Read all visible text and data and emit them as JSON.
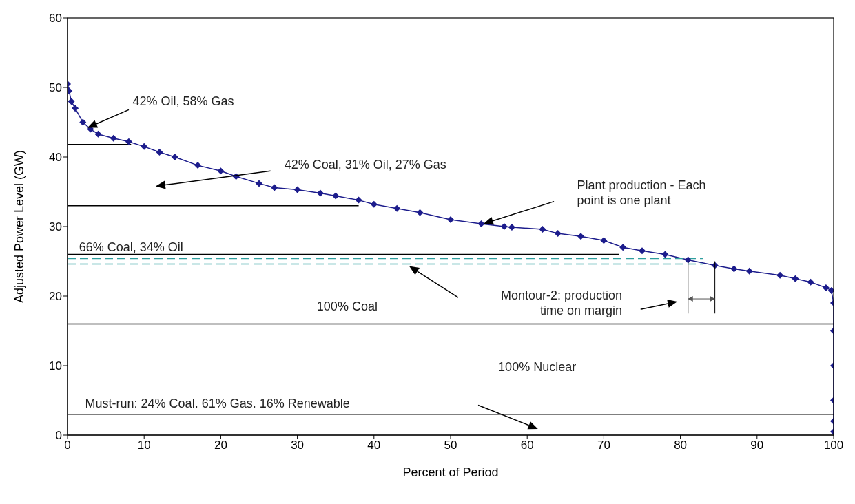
{
  "chart_data": {
    "type": "line",
    "xlabel": "Percent of Period",
    "ylabel": "Adjusted Power Level (GW)",
    "xlim": [
      0,
      100
    ],
    "xticks": [
      0,
      10,
      20,
      30,
      40,
      50,
      60,
      70,
      80,
      90,
      100
    ],
    "ylim": [
      0,
      60
    ],
    "yticks": [
      0,
      10,
      20,
      30,
      40,
      50,
      60
    ],
    "series": [
      {
        "marker": "diamond",
        "color": "#1c1c8c",
        "x": [
          0,
          0.2,
          0.5,
          1,
          2,
          3,
          4,
          6,
          8,
          10,
          12,
          14,
          17,
          20,
          22,
          25,
          27,
          30,
          33,
          35,
          38,
          40,
          43,
          46,
          50,
          54,
          57,
          58,
          62,
          64,
          67,
          70,
          72.5,
          75,
          78,
          81,
          84.5,
          87,
          89,
          93,
          95,
          97,
          99,
          99.7,
          100,
          100,
          100,
          100,
          100,
          100
        ],
        "values": [
          50.5,
          49.5,
          48,
          47,
          45,
          44,
          43.3,
          42.7,
          42.2,
          41.5,
          40.7,
          40,
          38.8,
          38,
          37.2,
          36.2,
          35.6,
          35.3,
          34.8,
          34.4,
          33.8,
          33.2,
          32.6,
          32,
          31,
          30.4,
          30,
          29.9,
          29.6,
          29,
          28.6,
          28,
          27,
          26.5,
          26,
          25.2,
          24.4,
          23.9,
          23.6,
          23,
          22.5,
          22,
          21.2,
          20.8,
          19,
          15,
          10,
          5,
          2,
          0.5
        ]
      },
      {
        "marker": "none",
        "color": "#000000",
        "x": [
          0,
          8.3
        ],
        "values": [
          41.8,
          41.8
        ]
      },
      {
        "marker": "none",
        "color": "#000000",
        "x": [
          0,
          38
        ],
        "values": [
          33,
          33
        ]
      },
      {
        "marker": "none",
        "color": "#000000",
        "x": [
          0,
          72
        ],
        "values": [
          26,
          26
        ]
      },
      {
        "marker": "none",
        "line_style": "dashed",
        "color": "#2f9e9e",
        "x": [
          0,
          83
        ],
        "values": [
          25.4,
          25.4
        ]
      },
      {
        "marker": "none",
        "line_style": "dashed",
        "color": "#2f9e9e",
        "x": [
          0,
          83
        ],
        "values": [
          24.6,
          24.6
        ]
      },
      {
        "marker": "none",
        "color": "#000000",
        "x": [
          0,
          100
        ],
        "values": [
          16,
          16
        ]
      },
      {
        "marker": "none",
        "color": "#000000",
        "x": [
          0,
          100
        ],
        "values": [
          3,
          3
        ]
      }
    ],
    "annotations": [
      "42% Oil, 58% Gas",
      "42% Coal, 31% Oil, 27% Gas",
      "Plant production - Each point is one plant",
      "66% Coal, 34% Oil",
      "Montour-2: production time on margin",
      "100% Coal",
      "100% Nuclear",
      "Must-run: 24% Coal. 61% Gas. 16% Renewable"
    ]
  }
}
